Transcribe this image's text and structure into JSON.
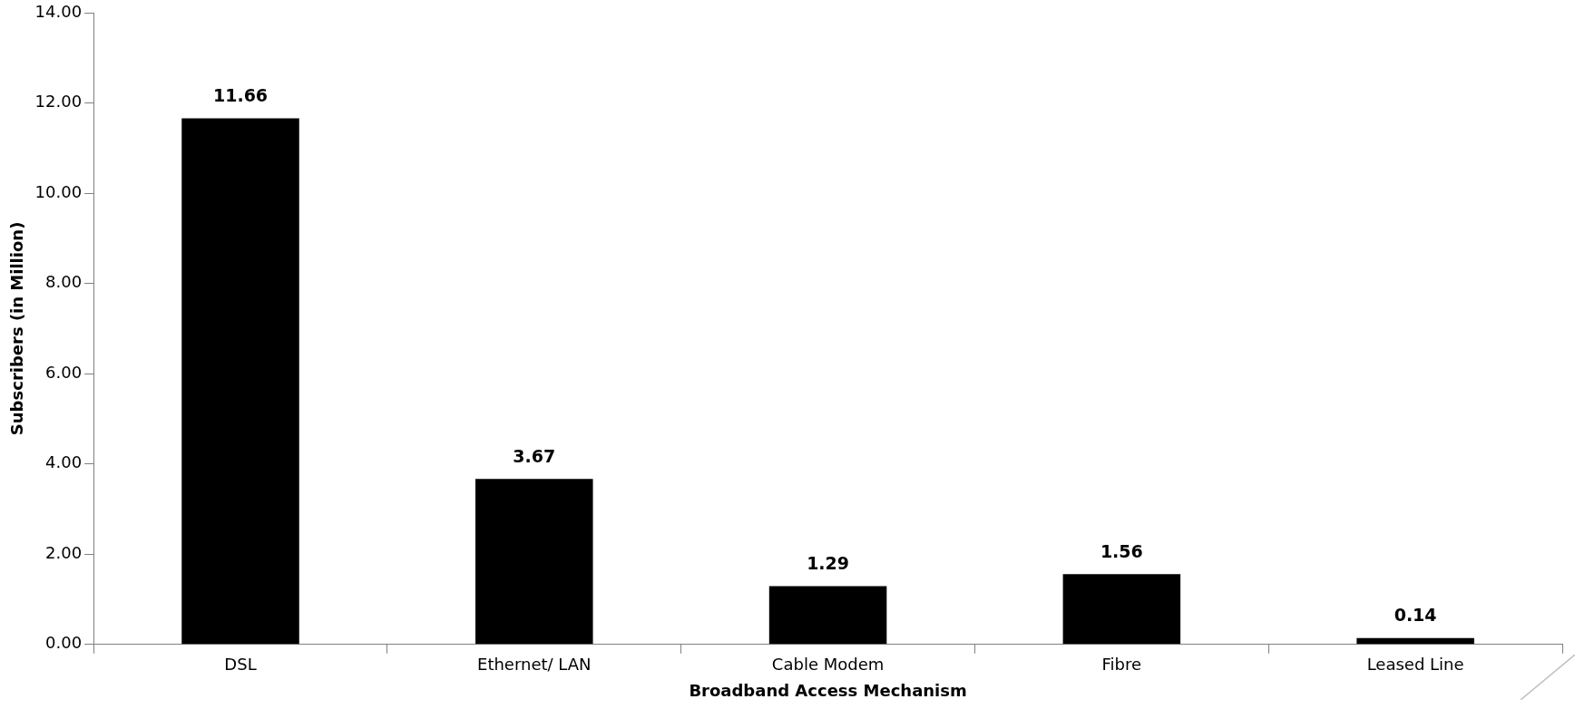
{
  "chart_data": {
    "type": "bar",
    "xlabel": "Broadband Access Mechanism",
    "ylabel": "Subscribers (in Million)",
    "categories": [
      "DSL",
      "Ethernet/ LAN",
      "Cable Modem",
      "Fibre",
      "Leased Line"
    ],
    "values": [
      11.66,
      3.67,
      1.29,
      1.56,
      0.14
    ],
    "color": "#000000",
    "ylim": [
      0,
      14
    ],
    "yticks": [
      {
        "value": 0,
        "label": "0.00"
      },
      {
        "value": 2,
        "label": "2.00"
      },
      {
        "value": 4,
        "label": "4.00"
      },
      {
        "value": 6,
        "label": "6.00"
      },
      {
        "value": 8,
        "label": "8.00"
      },
      {
        "value": 10,
        "label": "10.00"
      },
      {
        "value": 12,
        "label": "12.00"
      },
      {
        "value": 14,
        "label": "14.00"
      }
    ],
    "grid": false,
    "legend": false,
    "data_labels": true
  }
}
